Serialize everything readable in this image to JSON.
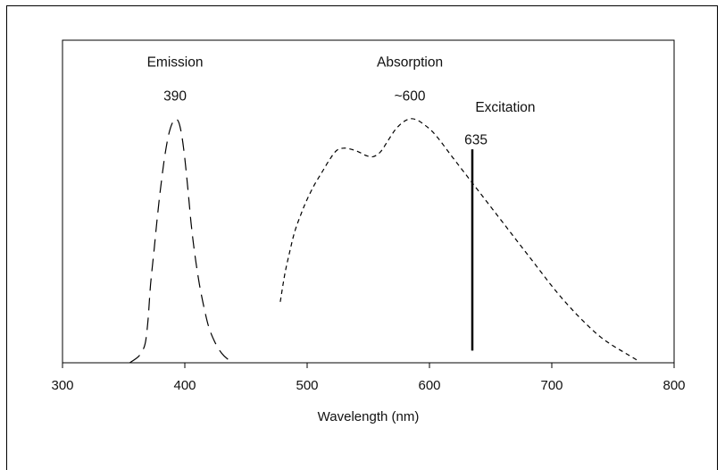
{
  "chart_data": {
    "type": "line",
    "title": "",
    "xlabel": "Wavelength (nm)",
    "ylabel": "",
    "xlim": [
      300,
      800
    ],
    "ylim": [
      0,
      1
    ],
    "x_ticks": [
      300,
      400,
      500,
      600,
      700,
      800
    ],
    "grid": false,
    "legend": "none",
    "series": [
      {
        "key": "emission",
        "style": "long-dash",
        "x": [
          355,
          362,
          366,
          368,
          370,
          372,
          375,
          378,
          381,
          384,
          387,
          390,
          393,
          396,
          399,
          402,
          405,
          408,
          412,
          416,
          420,
          425,
          430,
          435,
          440
        ],
        "y": [
          0.0,
          0.025,
          0.055,
          0.09,
          0.18,
          0.32,
          0.47,
          0.62,
          0.75,
          0.86,
          0.94,
          0.985,
          1.0,
          0.97,
          0.88,
          0.74,
          0.58,
          0.45,
          0.32,
          0.22,
          0.14,
          0.08,
          0.04,
          0.015,
          0.0
        ]
      },
      {
        "key": "absorption",
        "style": "short-dash",
        "x": [
          478,
          482,
          486,
          490,
          495,
          500,
          506,
          512,
          518,
          524,
          530,
          536,
          542,
          548,
          554,
          560,
          566,
          572,
          578,
          584,
          590,
          596,
          602,
          608,
          614,
          620,
          630,
          640,
          650,
          660,
          670,
          680,
          690,
          700,
          710,
          720,
          730,
          740,
          750,
          760,
          770
        ],
        "y": [
          0.25,
          0.37,
          0.46,
          0.54,
          0.61,
          0.67,
          0.73,
          0.78,
          0.83,
          0.87,
          0.88,
          0.875,
          0.865,
          0.85,
          0.845,
          0.865,
          0.91,
          0.955,
          0.985,
          1.0,
          0.995,
          0.975,
          0.95,
          0.915,
          0.875,
          0.835,
          0.77,
          0.705,
          0.64,
          0.575,
          0.51,
          0.445,
          0.38,
          0.315,
          0.255,
          0.2,
          0.15,
          0.105,
          0.07,
          0.04,
          0.01
        ]
      },
      {
        "key": "excitation",
        "style": "solid-vertical",
        "x": [
          635,
          635
        ],
        "y": [
          0.05,
          0.875
        ]
      }
    ],
    "annotations": [
      {
        "key": "emission-title",
        "text": "Emission",
        "x": 392,
        "y": 1.215
      },
      {
        "key": "emission-peak",
        "text": "390",
        "x": 392,
        "y": 1.075
      },
      {
        "key": "absorption-title",
        "text": "Absorption",
        "x": 584,
        "y": 1.215
      },
      {
        "key": "absorption-peak",
        "text": "~600",
        "x": 584,
        "y": 1.075
      },
      {
        "key": "excitation-title",
        "text": "Excitation",
        "x": 662,
        "y": 1.03
      },
      {
        "key": "excitation-peak",
        "text": "635",
        "x": 638,
        "y": 0.895
      }
    ]
  }
}
